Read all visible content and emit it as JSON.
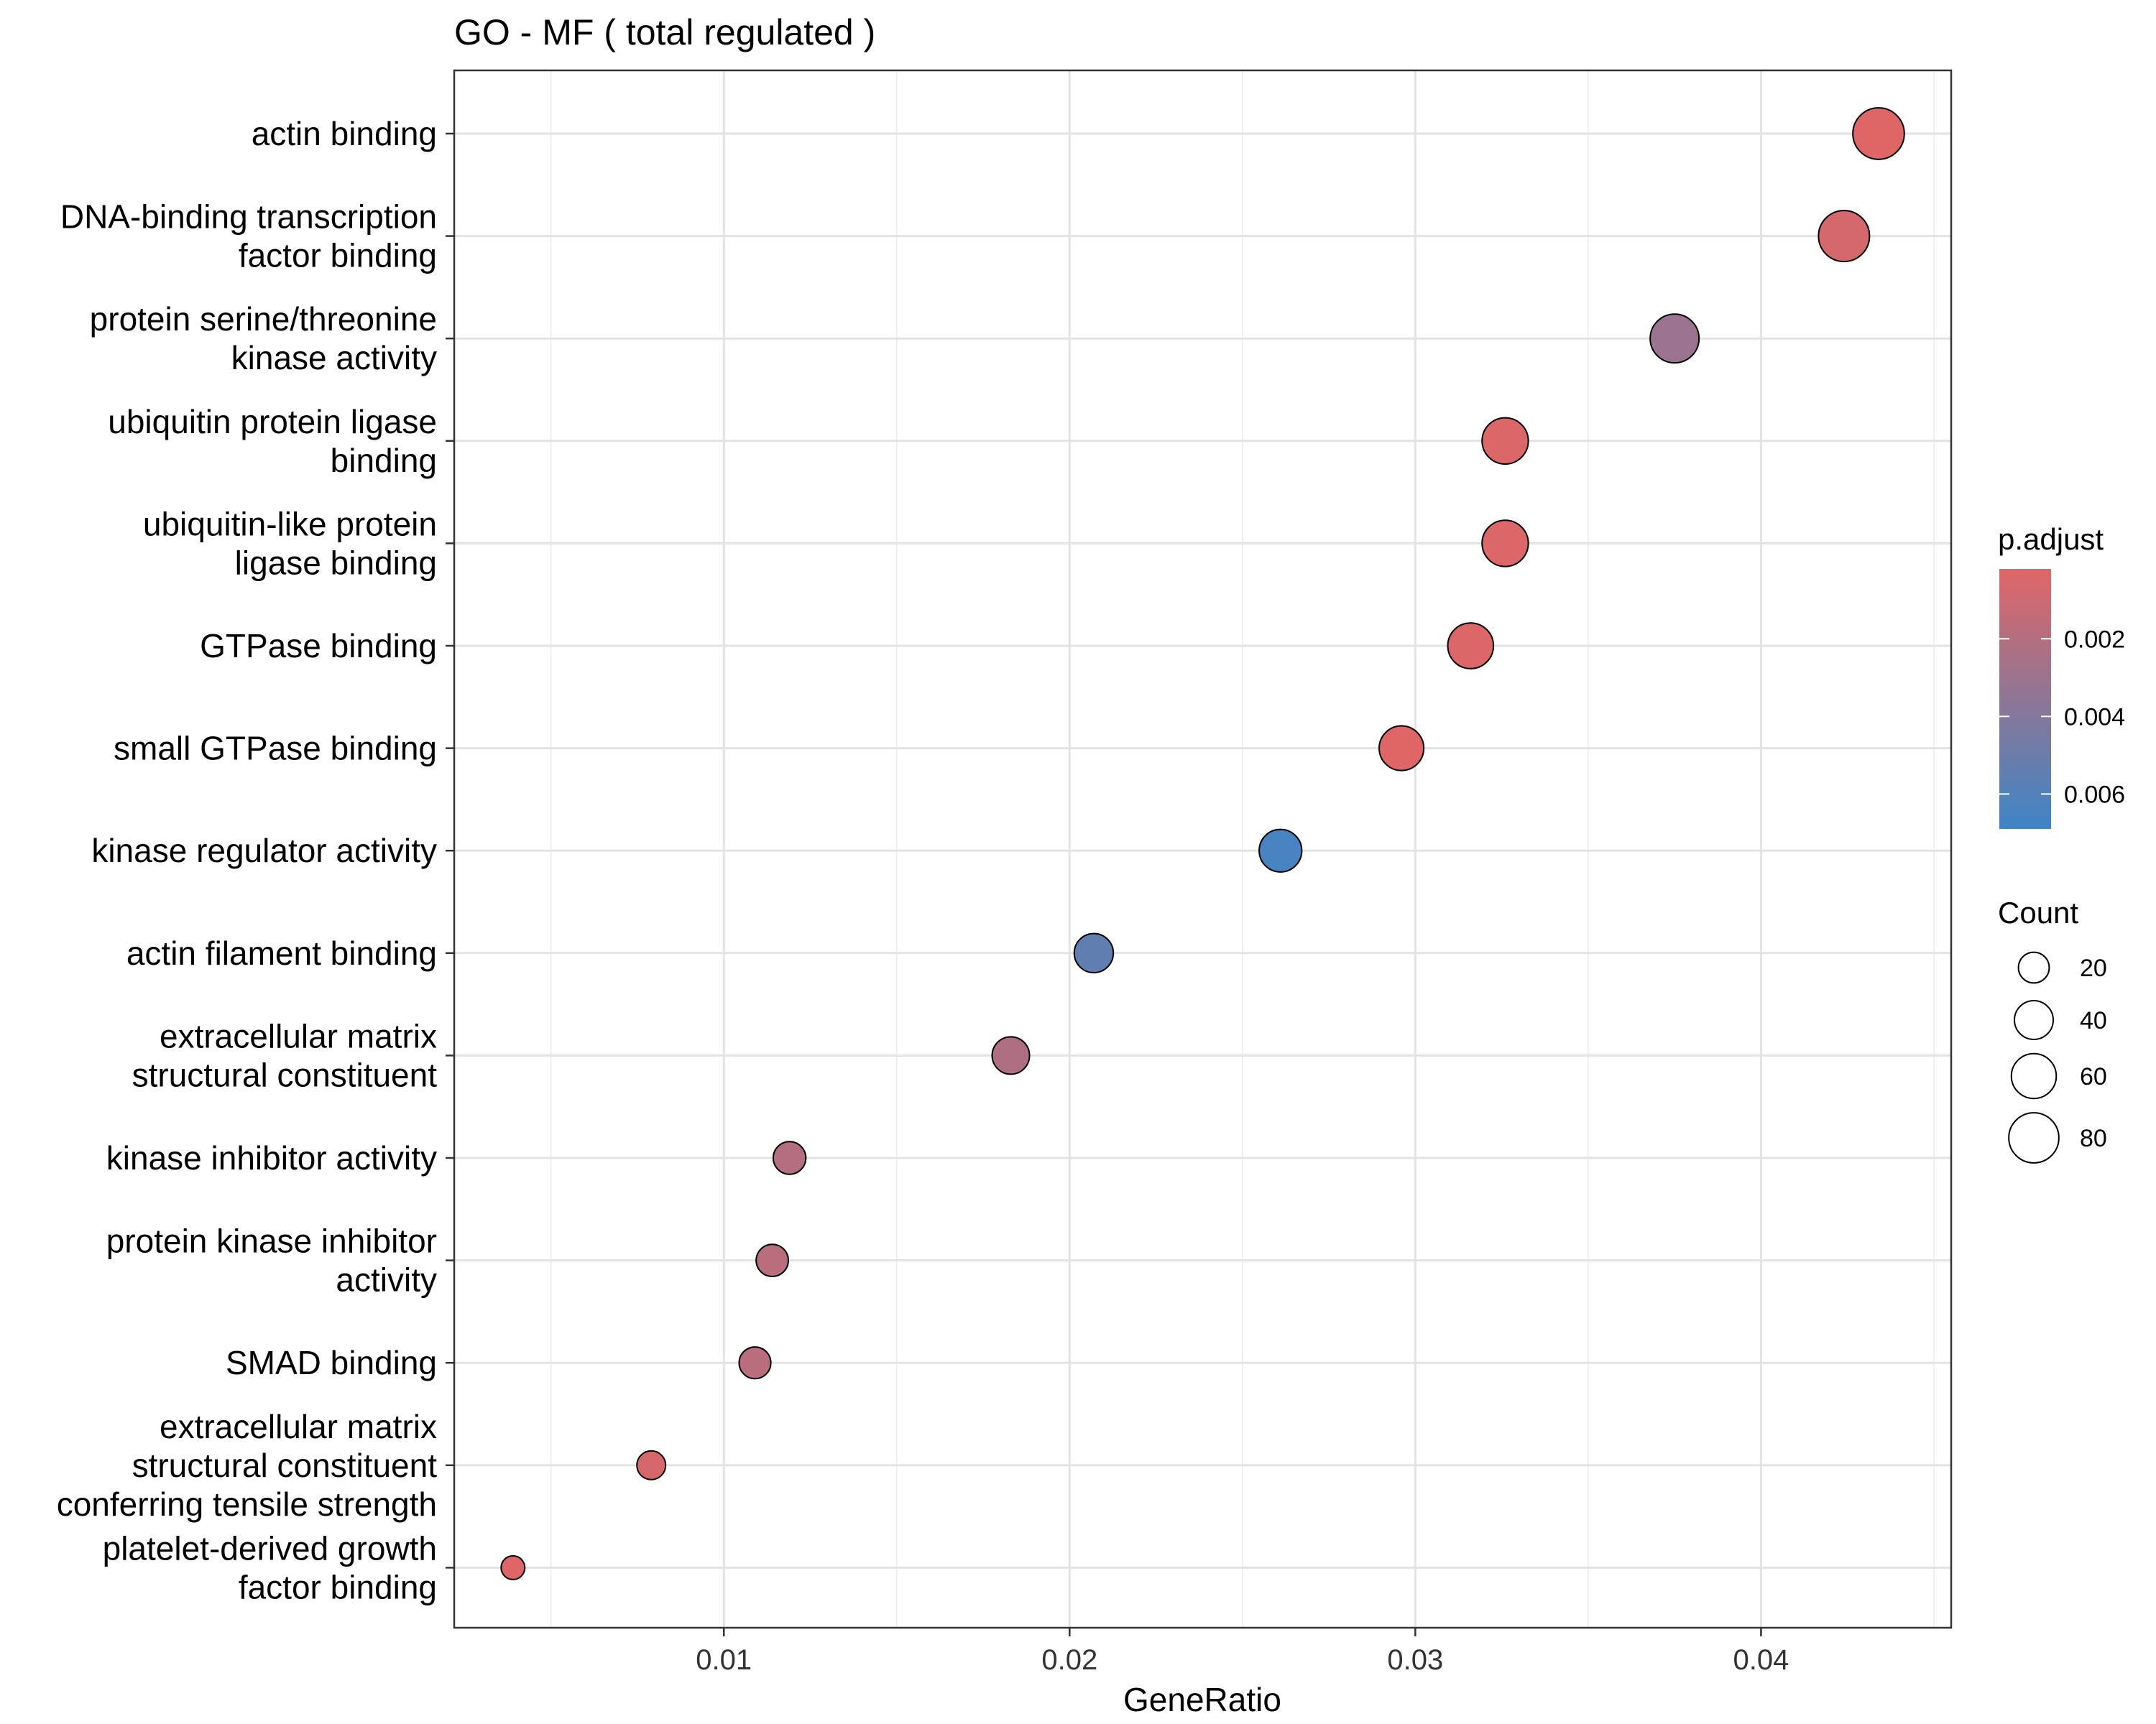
{
  "chart_data": {
    "type": "scatter",
    "title": "GO - MF ( total regulated )",
    "xlabel": "GeneRatio",
    "ylabel": "",
    "xlim": [
      0.0022,
      0.0455
    ],
    "x_ticks": [
      "0.01",
      "0.02",
      "0.03",
      "0.04"
    ],
    "x_tick_values": [
      0.01,
      0.02,
      0.03,
      0.04
    ],
    "grid": true,
    "legend_position": "right",
    "categories": [
      {
        "label": "actin binding",
        "gene_ratio": 0.0434,
        "count": 86,
        "p_adjust": 0.0003
      },
      {
        "label": "DNA-binding transcription factor binding",
        "gene_ratio": 0.0424,
        "count": 84,
        "p_adjust": 0.0007
      },
      {
        "label": "protein serine/threonine kinase activity",
        "gene_ratio": 0.0375,
        "count": 75,
        "p_adjust": 0.0031
      },
      {
        "label": "ubiquitin protein ligase binding",
        "gene_ratio": 0.0326,
        "count": 65,
        "p_adjust": 0.0004
      },
      {
        "label": "ubiquitin-like protein ligase binding",
        "gene_ratio": 0.0326,
        "count": 65,
        "p_adjust": 0.0004
      },
      {
        "label": "GTPase binding",
        "gene_ratio": 0.0316,
        "count": 63,
        "p_adjust": 0.0004
      },
      {
        "label": "small GTPase binding",
        "gene_ratio": 0.0296,
        "count": 59,
        "p_adjust": 0.0003
      },
      {
        "label": "kinase regulator activity",
        "gene_ratio": 0.0261,
        "count": 52,
        "p_adjust": 0.0065
      },
      {
        "label": "actin filament binding",
        "gene_ratio": 0.0207,
        "count": 41,
        "p_adjust": 0.0054
      },
      {
        "label": "extracellular matrix structural constituent",
        "gene_ratio": 0.0183,
        "count": 36,
        "p_adjust": 0.0022
      },
      {
        "label": "kinase inhibitor activity",
        "gene_ratio": 0.0119,
        "count": 24,
        "p_adjust": 0.002
      },
      {
        "label": "protein kinase inhibitor activity",
        "gene_ratio": 0.0114,
        "count": 23,
        "p_adjust": 0.0018
      },
      {
        "label": "SMAD binding",
        "gene_ratio": 0.0109,
        "count": 22,
        "p_adjust": 0.0018
      },
      {
        "label": "extracellular matrix structural constituent conferring tensile strength",
        "gene_ratio": 0.0079,
        "count": 16,
        "p_adjust": 0.0006
      },
      {
        "label": "platelet-derived growth factor binding",
        "gene_ratio": 0.0039,
        "count": 8,
        "p_adjust": 0.0003
      }
    ],
    "y_labels_wrapped": [
      [
        "actin binding"
      ],
      [
        "DNA-binding transcription",
        "factor binding"
      ],
      [
        "protein serine/threonine",
        "kinase activity"
      ],
      [
        "ubiquitin protein ligase",
        "binding"
      ],
      [
        "ubiquitin-like protein",
        "ligase binding"
      ],
      [
        "GTPase binding"
      ],
      [
        "small GTPase binding"
      ],
      [
        "kinase regulator activity"
      ],
      [
        "actin filament binding"
      ],
      [
        "extracellular matrix",
        "structural constituent"
      ],
      [
        "kinase inhibitor activity"
      ],
      [
        "protein kinase inhibitor",
        "activity"
      ],
      [
        "SMAD binding"
      ],
      [
        "extracellular matrix",
        "structural constituent",
        "conferring tensile strength"
      ],
      [
        "platelet-derived growth",
        "factor binding"
      ]
    ],
    "color_legend": {
      "title": "p.adjust",
      "range": [
        0.0002,
        0.0069
      ],
      "ticks": [
        "0.002",
        "0.004",
        "0.006"
      ],
      "tick_values": [
        0.002,
        0.004,
        0.006
      ],
      "low_color": "#e06666",
      "high_color": "#3d85c6"
    },
    "size_legend": {
      "title": "Count",
      "ticks": [
        "20",
        "40",
        "60",
        "80"
      ],
      "tick_values": [
        20,
        40,
        60,
        80
      ]
    }
  }
}
